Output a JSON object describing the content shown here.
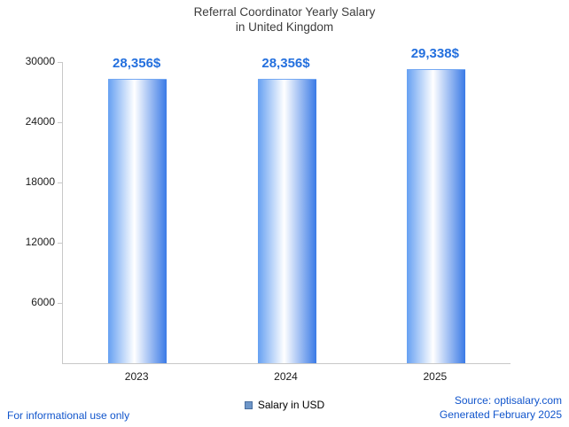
{
  "title": {
    "line1": "Referral Coordinator Yearly Salary",
    "line2": "in United Kingdom"
  },
  "chart_data": {
    "type": "bar",
    "categories": [
      "2023",
      "2024",
      "2025"
    ],
    "values": [
      28356,
      28356,
      29338
    ],
    "value_labels": [
      "28,356$",
      "28,356$",
      "29,338$"
    ],
    "yticks": [
      6000,
      12000,
      18000,
      24000,
      30000
    ],
    "ylim": [
      0,
      30000
    ],
    "grid": false,
    "legend": {
      "label": "Salary in USD",
      "position": "bottom",
      "marker_color": "#6e96c8"
    },
    "bar_gradient": [
      "#66a0f2",
      "#ffffff",
      "#3a7ae6"
    ],
    "value_label_color": "#2470de",
    "axis_color": "#c8c8c8"
  },
  "footer": {
    "left_note": "For informational use only",
    "source": "Source: optisalary.com",
    "generated": "Generated February 2025"
  }
}
